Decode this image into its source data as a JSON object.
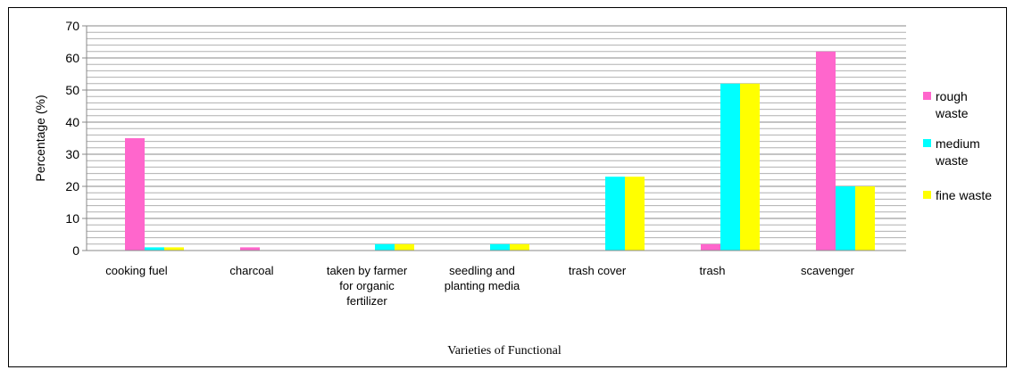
{
  "chart_data": {
    "type": "bar",
    "x_label": "Varieties of Functional",
    "y_label": "Percentage (%)",
    "categories": [
      "cooking fuel",
      "charcoal",
      "taken by farmer\nfor organic\nfertilizer",
      "seedling and\nplanting media",
      "trash cover",
      "trash",
      "scavenger"
    ],
    "series": [
      {
        "name": "rough\nwaste",
        "color": "#ff66cc",
        "values": [
          35,
          1,
          0,
          0,
          0,
          2,
          62
        ]
      },
      {
        "name": "medium\nwaste",
        "color": "#00ffff",
        "values": [
          1,
          0,
          2,
          2,
          23,
          52,
          20
        ]
      },
      {
        "name": "fine waste",
        "color": "#ffff00",
        "values": [
          1,
          0,
          2,
          2,
          23,
          52,
          20
        ]
      }
    ],
    "ylim": [
      0,
      70
    ],
    "yticks": [
      0,
      10,
      20,
      30,
      40,
      50,
      60,
      70
    ],
    "grid": true,
    "minor_grid_step": 2,
    "legend": "right"
  }
}
